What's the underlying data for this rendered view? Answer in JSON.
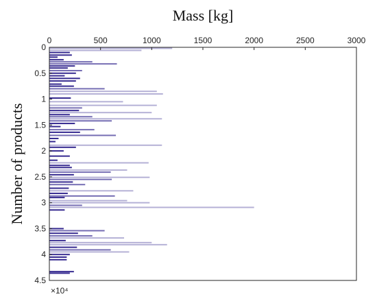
{
  "chart_data": {
    "type": "bar",
    "orientation": "horizontal",
    "xlabel": "Mass [kg]",
    "ylabel": "Number of products",
    "x_axis_position": "top",
    "y_axis_reversed": true,
    "xlim": [
      0,
      3000
    ],
    "ylim": [
      0,
      45000
    ],
    "x_ticks": [
      0,
      500,
      1000,
      1500,
      2000,
      2500,
      3000
    ],
    "x_tick_labels": [
      "0",
      "500",
      "1000",
      "1500",
      "2000",
      "2500",
      "3000"
    ],
    "y_ticks": [
      0,
      5000,
      10000,
      15000,
      20000,
      25000,
      30000,
      35000,
      40000,
      45000
    ],
    "y_tick_labels": [
      "0",
      "0.5",
      "1",
      "1.5",
      "2",
      "2.5",
      "3",
      "3.5",
      "4",
      "4.5"
    ],
    "y_exponent_label": "×10⁴",
    "grid": false,
    "bar_color": "#2b1f8a",
    "bars": [
      {
        "y": 200,
        "value": 1200
      },
      {
        "y": 600,
        "value": 900
      },
      {
        "y": 1000,
        "value": 200
      },
      {
        "y": 1500,
        "value": 220
      },
      {
        "y": 1900,
        "value": 80
      },
      {
        "y": 2400,
        "value": 140
      },
      {
        "y": 2800,
        "value": 420
      },
      {
        "y": 3200,
        "value": 660
      },
      {
        "y": 3600,
        "value": 250
      },
      {
        "y": 4000,
        "value": 180
      },
      {
        "y": 4500,
        "value": 320
      },
      {
        "y": 5000,
        "value": 260
      },
      {
        "y": 5500,
        "value": 150
      },
      {
        "y": 6000,
        "value": 300
      },
      {
        "y": 6500,
        "value": 260
      },
      {
        "y": 7100,
        "value": 120
      },
      {
        "y": 7500,
        "value": 240
      },
      {
        "y": 8000,
        "value": 540
      },
      {
        "y": 8500,
        "value": 1050
      },
      {
        "y": 9000,
        "value": 1110
      },
      {
        "y": 9800,
        "value": 210
      },
      {
        "y": 10500,
        "value": 720
      },
      {
        "y": 11200,
        "value": 1050
      },
      {
        "y": 11700,
        "value": 320
      },
      {
        "y": 12200,
        "value": 290
      },
      {
        "y": 12600,
        "value": 1000
      },
      {
        "y": 13000,
        "value": 200
      },
      {
        "y": 13400,
        "value": 420
      },
      {
        "y": 13800,
        "value": 1100
      },
      {
        "y": 14200,
        "value": 610
      },
      {
        "y": 14700,
        "value": 250
      },
      {
        "y": 15300,
        "value": 110
      },
      {
        "y": 15900,
        "value": 440
      },
      {
        "y": 16400,
        "value": 300
      },
      {
        "y": 17000,
        "value": 650
      },
      {
        "y": 17600,
        "value": 90
      },
      {
        "y": 18200,
        "value": 60
      },
      {
        "y": 18900,
        "value": 1100
      },
      {
        "y": 19300,
        "value": 260
      },
      {
        "y": 20000,
        "value": 140
      },
      {
        "y": 21000,
        "value": 200
      },
      {
        "y": 21800,
        "value": 80
      },
      {
        "y": 22300,
        "value": 970
      },
      {
        "y": 22800,
        "value": 200
      },
      {
        "y": 23200,
        "value": 220
      },
      {
        "y": 23700,
        "value": 760
      },
      {
        "y": 24100,
        "value": 600
      },
      {
        "y": 24600,
        "value": 240
      },
      {
        "y": 25100,
        "value": 980
      },
      {
        "y": 25500,
        "value": 610
      },
      {
        "y": 26000,
        "value": 230
      },
      {
        "y": 26500,
        "value": 350
      },
      {
        "y": 27200,
        "value": 190
      },
      {
        "y": 27700,
        "value": 820
      },
      {
        "y": 28200,
        "value": 180
      },
      {
        "y": 28700,
        "value": 640
      },
      {
        "y": 29000,
        "value": 150
      },
      {
        "y": 29600,
        "value": 760
      },
      {
        "y": 30000,
        "value": 980
      },
      {
        "y": 30500,
        "value": 320
      },
      {
        "y": 30900,
        "value": 2000
      },
      {
        "y": 31400,
        "value": 150
      },
      {
        "y": 35000,
        "value": 140
      },
      {
        "y": 35400,
        "value": 540
      },
      {
        "y": 35900,
        "value": 280
      },
      {
        "y": 36400,
        "value": 420
      },
      {
        "y": 36800,
        "value": 730
      },
      {
        "y": 37300,
        "value": 160
      },
      {
        "y": 37700,
        "value": 1000
      },
      {
        "y": 38100,
        "value": 1150
      },
      {
        "y": 38600,
        "value": 270
      },
      {
        "y": 39100,
        "value": 600
      },
      {
        "y": 39500,
        "value": 780
      },
      {
        "y": 40000,
        "value": 200
      },
      {
        "y": 40500,
        "value": 170
      },
      {
        "y": 41000,
        "value": 170
      },
      {
        "y": 43300,
        "value": 240
      },
      {
        "y": 43600,
        "value": 200
      }
    ]
  }
}
